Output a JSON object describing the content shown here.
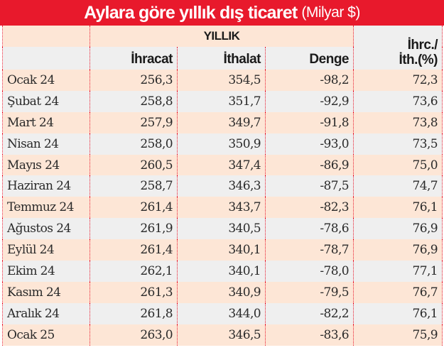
{
  "title": {
    "main": "Aylara göre yıllık dış ticaret",
    "unit": "(Milyar $)"
  },
  "header": {
    "group_label": "YILLIK",
    "columns": [
      "İhracat",
      "İthalat",
      "Denge"
    ],
    "ratio_line1": "İhrc./",
    "ratio_line2": "İth.(%)"
  },
  "colors": {
    "title_bar": "#e8192c",
    "row_peach": "#fde6d6",
    "row_grey": "#efefef",
    "divider": "#e8192c"
  },
  "rows": [
    {
      "month": "Ocak 24",
      "ihracat": "256,3",
      "ithalat": "354,5",
      "denge": "-98,2",
      "oran": "72,3"
    },
    {
      "month": "Şubat 24",
      "ihracat": "258,8",
      "ithalat": "351,7",
      "denge": "-92,9",
      "oran": "73,6"
    },
    {
      "month": "Mart 24",
      "ihracat": "257,9",
      "ithalat": "349,7",
      "denge": "-91,8",
      "oran": "73,8"
    },
    {
      "month": "Nisan 24",
      "ihracat": "258,0",
      "ithalat": "350,9",
      "denge": "-93,0",
      "oran": "73,5"
    },
    {
      "month": "Mayıs 24",
      "ihracat": "260,5",
      "ithalat": "347,4",
      "denge": "-86,9",
      "oran": "75,0"
    },
    {
      "month": "Haziran 24",
      "ihracat": "258,7",
      "ithalat": "346,3",
      "denge": "-87,5",
      "oran": "74,7"
    },
    {
      "month": "Temmuz 24",
      "ihracat": "261,4",
      "ithalat": "343,7",
      "denge": "-82,3",
      "oran": "76,1"
    },
    {
      "month": "Ağustos 24",
      "ihracat": "261,9",
      "ithalat": "340,5",
      "denge": "-78,6",
      "oran": "76,9"
    },
    {
      "month": "Eylül 24",
      "ihracat": "261,4",
      "ithalat": "340,1",
      "denge": "-78,7",
      "oran": "76,9"
    },
    {
      "month": "Ekim 24",
      "ihracat": "262,1",
      "ithalat": "340,1",
      "denge": "-78,0",
      "oran": "77,1"
    },
    {
      "month": "Kasım 24",
      "ihracat": "261,3",
      "ithalat": "340,9",
      "denge": "-79,5",
      "oran": "76,7"
    },
    {
      "month": "Aralık 24",
      "ihracat": "261,8",
      "ithalat": "344,0",
      "denge": "-82,2",
      "oran": "76,1"
    },
    {
      "month": "Ocak 25",
      "ihracat": "263,0",
      "ithalat": "346,5",
      "denge": "-83,6",
      "oran": "75,9"
    }
  ]
}
